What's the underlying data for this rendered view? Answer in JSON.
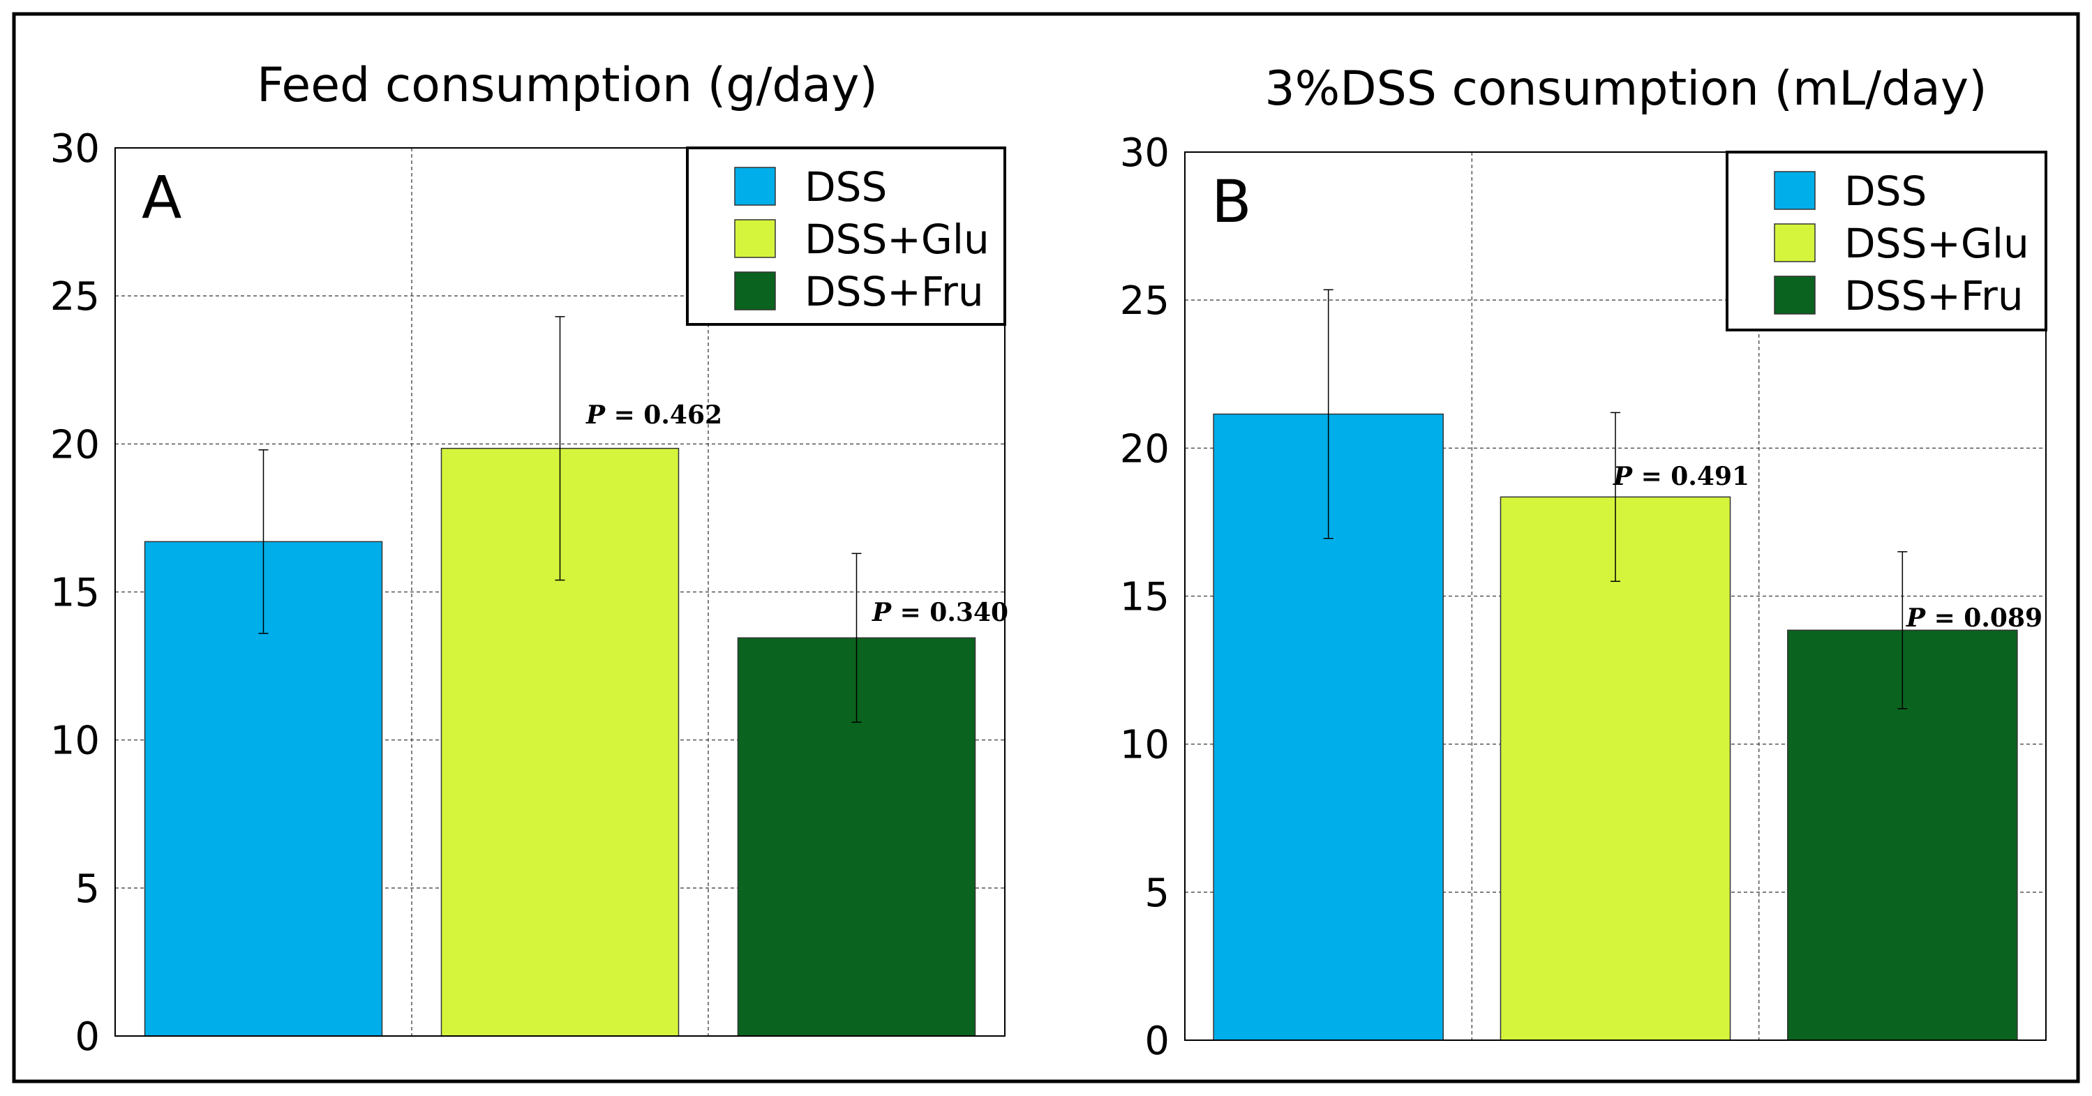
{
  "chart_data": [
    {
      "type": "bar",
      "panel": "A",
      "title": "Feed consumption (g/day)",
      "categories": [
        "DSS",
        "DSS+Glu",
        "DSS+Fru"
      ],
      "values": [
        16.7,
        19.85,
        13.45
      ],
      "errors": [
        3.1,
        4.45,
        2.85
      ],
      "colors": [
        "#00aeea",
        "#d4f53c",
        "#0a631e"
      ],
      "ylim": [
        0,
        30
      ],
      "yticks": [
        "0",
        "5",
        "10",
        "15",
        "20",
        "25",
        "30"
      ],
      "p_values": [
        "",
        "P = 0.462",
        "P = 0.340"
      ],
      "legend": [
        "DSS",
        "DSS+Glu",
        "DSS+Fru"
      ],
      "legend_position": "top-right",
      "grid": true
    },
    {
      "type": "bar",
      "panel": "B",
      "title": "3%DSS consumption (mL/day)",
      "categories": [
        "DSS",
        "DSS+Glu",
        "DSS+Fru"
      ],
      "values": [
        21.15,
        18.35,
        13.85
      ],
      "errors": [
        4.2,
        2.85,
        2.65
      ],
      "colors": [
        "#00aeea",
        "#d4f53c",
        "#0a631e"
      ],
      "ylim": [
        0,
        30
      ],
      "yticks": [
        "0",
        "5",
        "10",
        "15",
        "20",
        "25",
        "30"
      ],
      "p_values": [
        "",
        "P = 0.491",
        "P = 0.089"
      ],
      "legend": [
        "DSS",
        "DSS+Glu",
        "DSS+Fru"
      ],
      "legend_position": "top-right",
      "grid": true
    }
  ]
}
